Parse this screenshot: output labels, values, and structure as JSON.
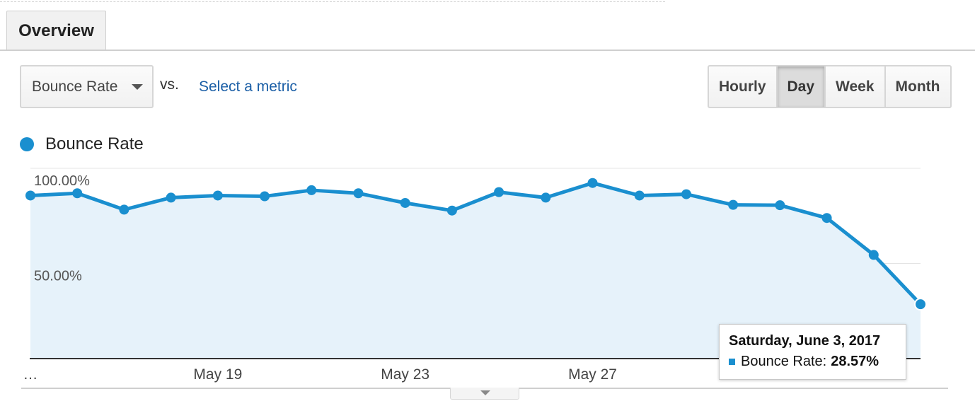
{
  "tabs": {
    "overview": "Overview"
  },
  "controls": {
    "metric_select": "Bounce Rate",
    "vs_label": "vs.",
    "compare_link": "Select a metric",
    "periods": [
      "Hourly",
      "Day",
      "Week",
      "Month"
    ],
    "active_period": "Day"
  },
  "icons": {
    "select_caret": "caret-down-icon",
    "expand": "chevron-down-icon"
  },
  "colors": {
    "line": "#1a8fcf",
    "area": "#e6f2fa",
    "link": "#1a5ea6"
  },
  "tooltip": {
    "date": "Saturday, June 3, 2017",
    "series": "Bounce Rate:",
    "value": "28.57%"
  },
  "chart_data": {
    "type": "area",
    "series": [
      {
        "name": "Bounce Rate",
        "values": [
          85.7,
          86.9,
          78.3,
          84.6,
          85.7,
          85.3,
          88.5,
          86.9,
          81.8,
          77.8,
          87.5,
          84.6,
          92.3,
          85.7,
          86.4,
          80.8,
          80.6,
          73.9,
          54.5,
          28.57
        ]
      }
    ],
    "x_tick_labels": [
      "…",
      "May 19",
      "May 23",
      "May 27"
    ],
    "y_tick_labels": [
      "100.00%",
      "50.00%"
    ],
    "ylim": [
      0,
      100
    ],
    "grid": true,
    "legend": "top-left"
  }
}
